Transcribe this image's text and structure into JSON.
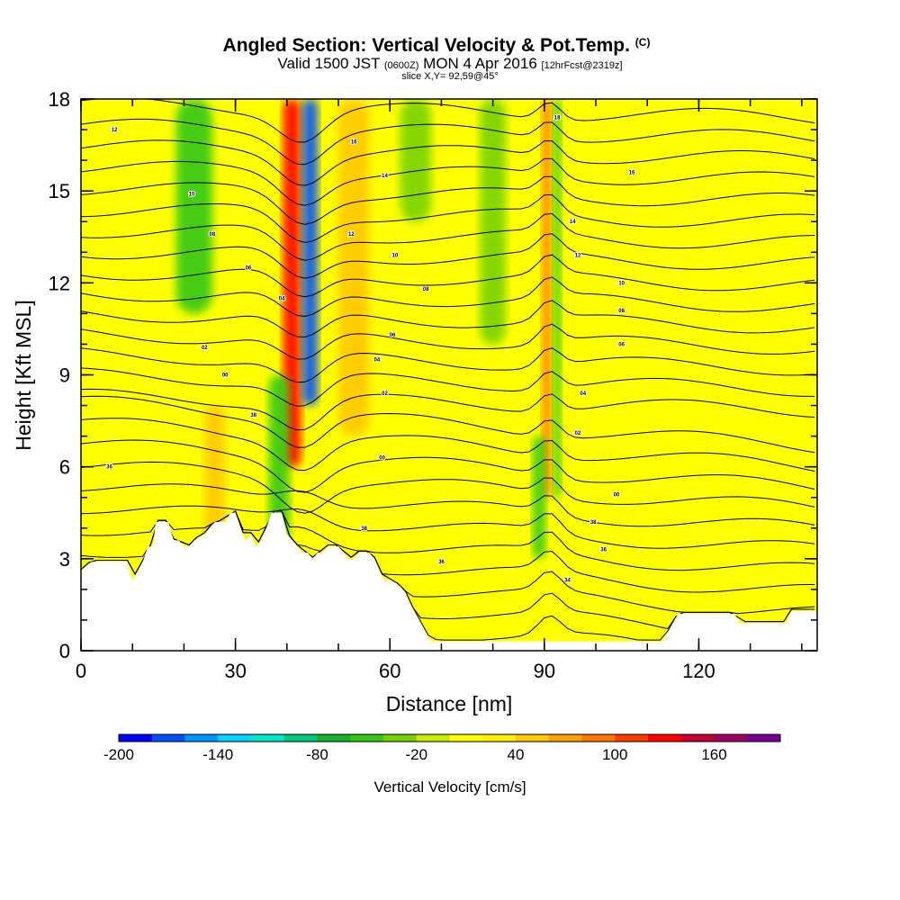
{
  "chart_data": {
    "type": "heatmap",
    "title": "Angled Section: Vertical Velocity & Pot.Temp.",
    "title_unit": "(C)",
    "subtitle_valid": "Valid 1500 JST",
    "subtitle_utc": "(0600Z)",
    "subtitle_date": "MON 4 Apr 2016",
    "subtitle_forecast": "[12hrFcst@2319z]",
    "slice_label": "slice X,Y= 92,59@45°",
    "xlabel": "Distance [nm]",
    "ylabel": "Height [Kft MSL]",
    "xlim": [
      0,
      143
    ],
    "ylim": [
      0,
      18
    ],
    "x_ticks": [
      0,
      30,
      60,
      90,
      120
    ],
    "x_minor_step": 10,
    "y_ticks": [
      0,
      3,
      6,
      9,
      12,
      15,
      18
    ],
    "y_minor_step": 1,
    "colorbar": {
      "label": "Vertical Velocity [cm/s]",
      "min": -200,
      "max": 200,
      "step": 20,
      "tick_labels": [
        -200,
        -140,
        -80,
        -20,
        40,
        100,
        160
      ],
      "colors": [
        "#0000ff",
        "#0050ff",
        "#0096ff",
        "#00d2ff",
        "#00e6c8",
        "#00c878",
        "#14b428",
        "#32c814",
        "#78d200",
        "#c8eb00",
        "#ffff00",
        "#fff000",
        "#ffc800",
        "#ffa000",
        "#ff7800",
        "#ff3c00",
        "#ff0000",
        "#c80032",
        "#a00064",
        "#780096"
      ]
    },
    "vertical_velocity_features": [
      {
        "center_nm": 41,
        "width_nm": 3.5,
        "value_cms": 120,
        "from_kft": 6,
        "to_kft": 18
      },
      {
        "center_nm": 44.5,
        "width_nm": 3,
        "value_cms": -180,
        "from_kft": 8,
        "to_kft": 18
      },
      {
        "center_nm": 38.5,
        "width_nm": 4,
        "value_cms": -60,
        "from_kft": 3,
        "to_kft": 9
      },
      {
        "center_nm": 53,
        "width_nm": 6,
        "value_cms": 45,
        "from_kft": 7,
        "to_kft": 18
      },
      {
        "center_nm": 22,
        "width_nm": 7,
        "value_cms": -50,
        "from_kft": 11,
        "to_kft": 18
      },
      {
        "center_nm": 26,
        "width_nm": 4,
        "value_cms": 45,
        "from_kft": 3,
        "to_kft": 8
      },
      {
        "center_nm": 90.5,
        "width_nm": 1.8,
        "value_cms": 80,
        "from_kft": 5,
        "to_kft": 18
      },
      {
        "center_nm": 92.5,
        "width_nm": 1.5,
        "value_cms": -60,
        "from_kft": 5,
        "to_kft": 18
      },
      {
        "center_nm": 89,
        "width_nm": 2.5,
        "value_cms": -50,
        "from_kft": 3,
        "to_kft": 7
      },
      {
        "center_nm": 65,
        "width_nm": 6,
        "value_cms": -30,
        "from_kft": 14,
        "to_kft": 18
      },
      {
        "center_nm": 80,
        "width_nm": 5,
        "value_cms": -30,
        "from_kft": 10,
        "to_kft": 18
      }
    ],
    "terrain_kft": [
      [
        0,
        2.6
      ],
      [
        2,
        2.9
      ],
      [
        9,
        2.9
      ],
      [
        10,
        2.3
      ],
      [
        12,
        2.9
      ],
      [
        13,
        3.4
      ],
      [
        14,
        3.4
      ],
      [
        14.5,
        4.2
      ],
      [
        17,
        4.2
      ],
      [
        18,
        3.6
      ],
      [
        19,
        3.6
      ],
      [
        20,
        3.4
      ],
      [
        21,
        3.4
      ],
      [
        22,
        3.6
      ],
      [
        24,
        3.8
      ],
      [
        25,
        4.0
      ],
      [
        26,
        4.2
      ],
      [
        28,
        4.2
      ],
      [
        29,
        4.5
      ],
      [
        30,
        4.5
      ],
      [
        31,
        4.0
      ],
      [
        32,
        3.6
      ],
      [
        33,
        3.8
      ],
      [
        34,
        3.4
      ],
      [
        35,
        3.6
      ],
      [
        36,
        4.0
      ],
      [
        37,
        4.5
      ],
      [
        39,
        4.5
      ],
      [
        40,
        3.8
      ],
      [
        42,
        3.4
      ],
      [
        43,
        3.2
      ],
      [
        44,
        3.2
      ],
      [
        45,
        3.0
      ],
      [
        46,
        3.2
      ],
      [
        47,
        3.2
      ],
      [
        48,
        3.4
      ],
      [
        50,
        3.4
      ],
      [
        51,
        3.2
      ],
      [
        52,
        3.0
      ],
      [
        53,
        3.0
      ],
      [
        54,
        3.2
      ],
      [
        56,
        3.2
      ],
      [
        57,
        3.0
      ],
      [
        58,
        2.6
      ],
      [
        59,
        2.3
      ],
      [
        60,
        2.3
      ],
      [
        62,
        2.1
      ],
      [
        63,
        1.9
      ],
      [
        64,
        1.5
      ],
      [
        65,
        1.2
      ],
      [
        66,
        0.9
      ],
      [
        67,
        0.6
      ],
      [
        68,
        0.3
      ],
      [
        80,
        0.3
      ],
      [
        90,
        0.3
      ],
      [
        113,
        0.3
      ],
      [
        114,
        0.6
      ],
      [
        115,
        0.9
      ],
      [
        116,
        1.2
      ],
      [
        127,
        1.2
      ],
      [
        128,
        0.9
      ],
      [
        137,
        0.9
      ],
      [
        138,
        1.3
      ],
      [
        143,
        1.3
      ]
    ],
    "isentrope_labels": [
      {
        "x": 6.5,
        "y": 17.0,
        "text": "12"
      },
      {
        "x": 21.5,
        "y": 14.9,
        "text": "10"
      },
      {
        "x": 25.5,
        "y": 13.6,
        "text": "08"
      },
      {
        "x": 32.5,
        "y": 12.5,
        "text": "06"
      },
      {
        "x": 39.0,
        "y": 11.5,
        "text": "04"
      },
      {
        "x": 24.0,
        "y": 9.9,
        "text": "02"
      },
      {
        "x": 28.0,
        "y": 9.0,
        "text": "00"
      },
      {
        "x": 33.5,
        "y": 7.7,
        "text": "38"
      },
      {
        "x": 5.5,
        "y": 6.0,
        "text": "36"
      },
      {
        "x": 53.0,
        "y": 16.6,
        "text": "16"
      },
      {
        "x": 59.0,
        "y": 15.5,
        "text": "14"
      },
      {
        "x": 52.5,
        "y": 13.6,
        "text": "12"
      },
      {
        "x": 61.0,
        "y": 12.9,
        "text": "10"
      },
      {
        "x": 67.0,
        "y": 11.8,
        "text": "08"
      },
      {
        "x": 60.5,
        "y": 10.3,
        "text": "06"
      },
      {
        "x": 57.5,
        "y": 9.5,
        "text": "04"
      },
      {
        "x": 59.0,
        "y": 8.4,
        "text": "02"
      },
      {
        "x": 58.5,
        "y": 6.3,
        "text": "00"
      },
      {
        "x": 55.0,
        "y": 4.0,
        "text": "38"
      },
      {
        "x": 70.0,
        "y": 2.9,
        "text": "36"
      },
      {
        "x": 92.5,
        "y": 17.4,
        "text": "18"
      },
      {
        "x": 107.0,
        "y": 15.6,
        "text": "16"
      },
      {
        "x": 95.5,
        "y": 14.0,
        "text": "14"
      },
      {
        "x": 96.5,
        "y": 12.9,
        "text": "12"
      },
      {
        "x": 105.0,
        "y": 12.0,
        "text": "10"
      },
      {
        "x": 105.0,
        "y": 11.1,
        "text": "08"
      },
      {
        "x": 105.0,
        "y": 10.0,
        "text": "06"
      },
      {
        "x": 97.5,
        "y": 8.4,
        "text": "04"
      },
      {
        "x": 96.5,
        "y": 7.1,
        "text": "02"
      },
      {
        "x": 104.0,
        "y": 5.1,
        "text": "00"
      },
      {
        "x": 99.5,
        "y": 4.2,
        "text": "38"
      },
      {
        "x": 101.5,
        "y": 3.3,
        "text": "36"
      },
      {
        "x": 94.5,
        "y": 2.3,
        "text": "34"
      }
    ],
    "grid": false
  }
}
